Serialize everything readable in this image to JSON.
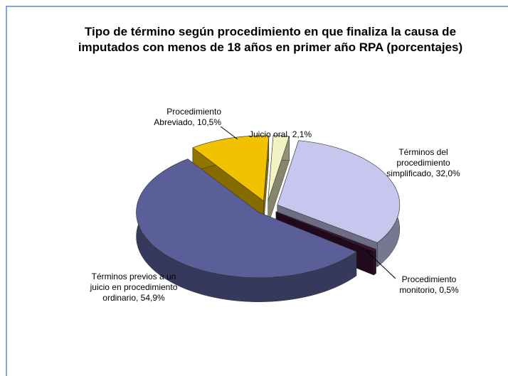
{
  "chart_data": {
    "type": "pie",
    "title": "Tipo de término según procedimiento en que finaliza la causa de imputados con menos de 18 años en primer año RPA (porcentajes)",
    "values": [
      32.0,
      0.5,
      54.9,
      10.5,
      2.1
    ],
    "value_labels": [
      "Términos del procedimiento simplificado, 32,0%",
      "Procedimiento monitorio, 0,5%",
      "Términos previos a un juicio en procedimiento ordinario, 54,9%",
      "Procedimiento Abreviado, 10,5%",
      "Juicio oral, 2,1%"
    ],
    "colors": [
      "#c6c6ee",
      "#3a1035",
      "#5b5f99",
      "#f2c200",
      "#f2f2c4"
    ]
  }
}
